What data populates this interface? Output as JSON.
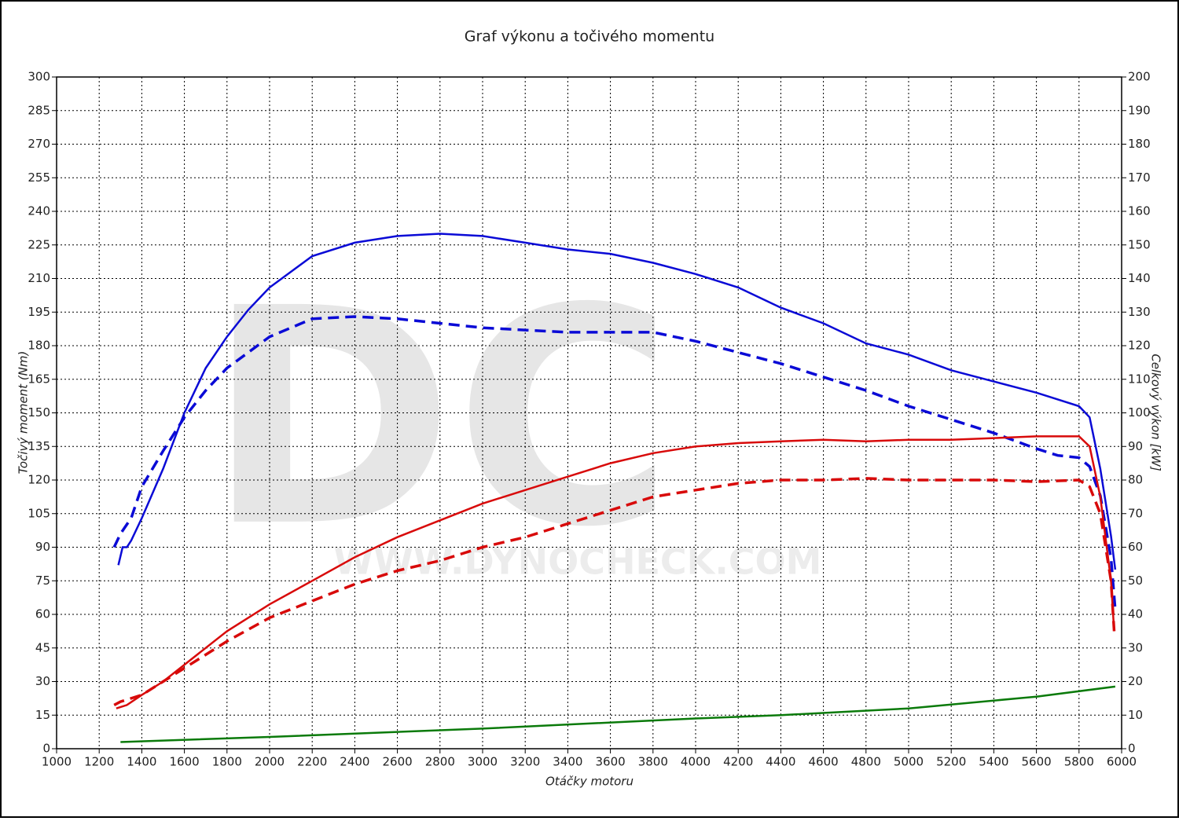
{
  "chart_data": {
    "type": "line",
    "title": "Graf výkonu a točivého momentu",
    "xlabel": "Otáčky motoru",
    "ylabel": "Točivý moment (Nm)",
    "y2label": "Celkový výkon [kW]",
    "watermark": "DC",
    "watermark_url": "WWW.DYNOCHECK.COM",
    "grid": true,
    "xlim": [
      1000,
      6000
    ],
    "xticks": [
      1000,
      1200,
      1400,
      1600,
      1800,
      2000,
      2200,
      2400,
      2600,
      2800,
      3000,
      3200,
      3400,
      3600,
      3800,
      4000,
      4200,
      4400,
      4600,
      4800,
      5000,
      5200,
      5400,
      5600,
      5800,
      6000
    ],
    "ylim": [
      0,
      300
    ],
    "yticks": [
      0,
      15,
      30,
      45,
      60,
      75,
      90,
      105,
      120,
      135,
      150,
      165,
      180,
      195,
      210,
      225,
      240,
      255,
      270,
      285,
      300
    ],
    "y2lim": [
      0,
      200
    ],
    "y2ticks": [
      0,
      10,
      20,
      30,
      40,
      50,
      60,
      70,
      80,
      90,
      100,
      110,
      120,
      130,
      140,
      150,
      160,
      170,
      180,
      190,
      200
    ],
    "series": [
      {
        "color": "#0a0ad6",
        "dashed": false,
        "axis": "y",
        "x": [
          1290,
          1310,
          1330,
          1350,
          1400,
          1500,
          1600,
          1700,
          1800,
          1900,
          2000,
          2200,
          2400,
          2600,
          2800,
          3000,
          3200,
          3400,
          3600,
          3800,
          4000,
          4200,
          4400,
          4600,
          4800,
          5000,
          5200,
          5400,
          5600,
          5800,
          5850,
          5900,
          5950,
          5970
        ],
        "values": [
          82,
          90,
          90,
          93,
          103,
          125,
          150,
          170,
          184,
          196,
          206,
          220,
          226,
          229,
          230,
          229,
          226,
          223,
          221,
          217,
          212,
          206,
          197,
          190,
          181,
          176,
          169,
          164,
          159,
          153,
          148,
          125,
          95,
          80
        ]
      },
      {
        "color": "#0a0ad6",
        "dashed": true,
        "axis": "y",
        "x": [
          1270,
          1300,
          1350,
          1400,
          1500,
          1600,
          1700,
          1800,
          1900,
          2000,
          2200,
          2400,
          2600,
          2800,
          3000,
          3200,
          3400,
          3600,
          3800,
          4000,
          4200,
          4400,
          4600,
          4800,
          5000,
          5200,
          5400,
          5600,
          5700,
          5800,
          5850,
          5900,
          5950,
          5970
        ],
        "values": [
          90,
          96,
          103,
          117,
          133,
          148,
          160,
          170,
          177,
          184,
          192,
          193,
          192,
          190,
          188,
          187,
          186,
          186,
          186,
          182,
          177,
          172,
          166,
          160,
          153,
          147,
          141,
          134,
          131,
          130,
          126,
          113,
          85,
          62
        ]
      },
      {
        "color": "#d80a0a",
        "dashed": false,
        "axis": "y2",
        "x": [
          1280,
          1330,
          1400,
          1500,
          1600,
          1800,
          2000,
          2200,
          2400,
          2600,
          2800,
          3000,
          3200,
          3400,
          3600,
          3800,
          4000,
          4200,
          4400,
          4600,
          4800,
          5000,
          5200,
          5400,
          5600,
          5800,
          5850,
          5900,
          5950,
          5965
        ],
        "values": [
          12,
          13,
          16,
          20,
          25,
          35,
          43,
          50,
          57,
          63,
          68,
          73,
          77,
          81,
          85,
          88,
          90,
          91,
          91.5,
          92,
          91.5,
          92,
          92,
          92.5,
          93,
          93,
          90,
          75,
          50,
          35
        ]
      },
      {
        "color": "#d80a0a",
        "dashed": true,
        "axis": "y2",
        "x": [
          1270,
          1300,
          1400,
          1500,
          1600,
          1800,
          2000,
          2200,
          2400,
          2600,
          2800,
          3000,
          3200,
          3400,
          3600,
          3800,
          4000,
          4200,
          4400,
          4600,
          4800,
          5000,
          5200,
          5400,
          5600,
          5800,
          5850,
          5900,
          5950,
          5965
        ],
        "values": [
          13,
          14,
          16,
          20,
          24,
          32,
          39,
          44,
          49,
          53,
          56,
          60,
          63,
          67,
          71,
          75,
          77,
          79,
          80,
          80,
          80.5,
          80,
          80,
          80,
          79.5,
          80,
          78,
          70,
          50,
          35
        ]
      },
      {
        "color": "#0a7a0a",
        "dashed": false,
        "axis": "y2",
        "x": [
          1300,
          2000,
          3000,
          4000,
          4400,
          5000,
          5600,
          5970
        ],
        "values": [
          2,
          3.5,
          6,
          9,
          10,
          12,
          15.5,
          18.5
        ]
      }
    ]
  }
}
